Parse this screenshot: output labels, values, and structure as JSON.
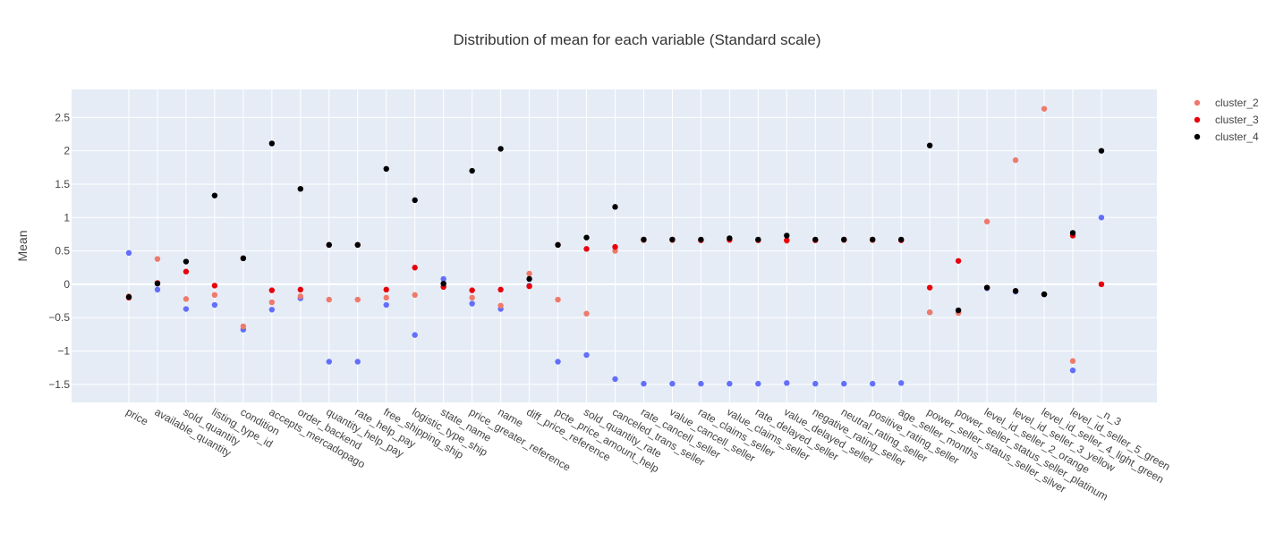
{
  "chart_data": {
    "type": "scatter",
    "title": "Distribution of mean for each variable (Standard scale)",
    "xlabel": "",
    "ylabel": "Mean",
    "ylim": [
      -1.77,
      2.92
    ],
    "yticks": [
      -1.5,
      -1,
      -0.5,
      0,
      0.5,
      1,
      1.5,
      2,
      2.5
    ],
    "ytick_labels": [
      "−1.5",
      "−1",
      "−0.5",
      "0",
      "0.5",
      "1",
      "1.5",
      "2",
      "2.5"
    ],
    "grid": true,
    "legend_position": "top-right",
    "categories": [
      "price",
      "available_quantity",
      "sold_quantity",
      "listing_type_id",
      "condition",
      "accepts_mercadopago",
      "order_backend",
      "quantity_help_pay",
      "rate_help_pay",
      "free_shipping_ship",
      "logistic_type_ship",
      "state_name",
      "price_greater_reference",
      "name",
      "diff_price_reference",
      "pcte_price_amount_help",
      "sold_quantity_rate",
      "canceled_trans_seller",
      "rate_cancell_seller",
      "value_cancell_seller",
      "rate_claims_seller",
      "value_claims_seller",
      "rate_delayed_seller",
      "value_delayed_seller",
      "negative_rating_seller",
      "neutral_rating_seller",
      "positive_rating_seller",
      "age_seller_months",
      "power_seller_status_seller_silver",
      "power_seller_status_seller_platinum",
      "level_id_seller_2_orange",
      "level_id_seller_3_yellow",
      "level_id_seller_4_light_green",
      "level_id_seller_5_green",
      "_n_3"
    ],
    "series": [
      {
        "name": "",
        "color": "#636efa",
        "values": [
          0.47,
          -0.08,
          -0.37,
          -0.31,
          -0.68,
          -0.38,
          -0.21,
          -1.16,
          -1.16,
          -0.31,
          -0.76,
          0.08,
          -0.29,
          -0.37,
          -0.02,
          -1.16,
          -1.06,
          -1.42,
          -1.49,
          -1.49,
          -1.49,
          -1.49,
          -1.49,
          -1.48,
          -1.49,
          -1.49,
          -1.49,
          -1.48,
          -0.42,
          -0.42,
          -0.06,
          -0.11,
          -0.15,
          -1.29,
          1.0
        ]
      },
      {
        "name": "cluster_2",
        "color": "#ef7a6b",
        "values": [
          -0.18,
          0.38,
          -0.22,
          -0.16,
          -0.63,
          -0.27,
          -0.18,
          -0.23,
          -0.23,
          -0.2,
          -0.16,
          -0.03,
          -0.2,
          -0.32,
          0.16,
          -0.23,
          -0.44,
          0.5,
          0.66,
          0.66,
          0.66,
          0.66,
          0.66,
          0.65,
          0.66,
          0.66,
          0.66,
          0.66,
          -0.42,
          -0.43,
          0.94,
          1.86,
          2.63,
          -1.15,
          0.0
        ]
      },
      {
        "name": "cluster_3",
        "color": "#e8000b",
        "values": [
          -0.2,
          0.02,
          0.19,
          -0.02,
          0.39,
          -0.09,
          -0.08,
          0.59,
          0.59,
          -0.08,
          0.25,
          -0.04,
          -0.09,
          -0.08,
          -0.03,
          0.59,
          0.53,
          0.56,
          0.67,
          0.67,
          0.66,
          0.67,
          0.66,
          0.66,
          0.66,
          0.67,
          0.67,
          0.66,
          -0.05,
          0.35,
          -0.05,
          -0.1,
          -0.15,
          0.73,
          0.0
        ]
      },
      {
        "name": "cluster_4",
        "color": "#000000",
        "values": [
          -0.19,
          0.01,
          0.34,
          1.33,
          0.39,
          2.11,
          1.43,
          0.59,
          0.59,
          1.73,
          1.26,
          0.01,
          1.7,
          2.03,
          0.08,
          0.59,
          0.7,
          1.16,
          0.67,
          0.67,
          0.67,
          0.69,
          0.67,
          0.73,
          0.67,
          0.67,
          0.67,
          0.67,
          2.08,
          -0.39,
          -0.05,
          -0.1,
          -0.15,
          0.77,
          2.0
        ]
      }
    ]
  }
}
